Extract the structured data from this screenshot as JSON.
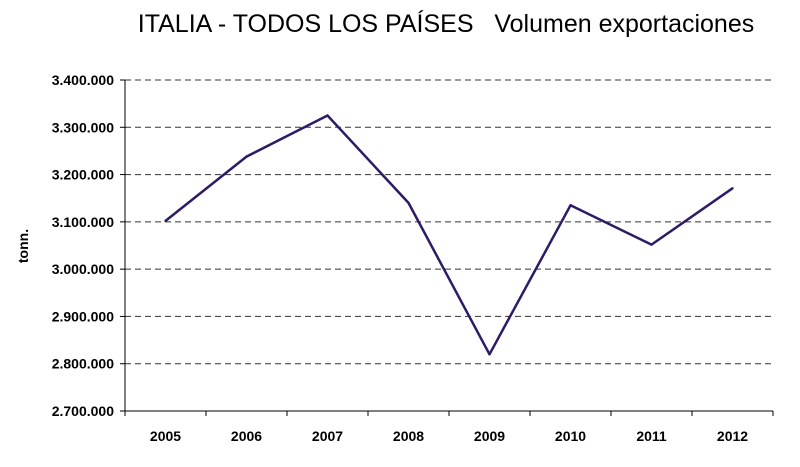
{
  "chart_data": {
    "type": "line",
    "title": "ITALIA - TODOS LOS PAÍSES   Volumen exportaciones",
    "xlabel": "",
    "ylabel": "tonn.",
    "categories": [
      "2005",
      "2006",
      "2007",
      "2008",
      "2009",
      "2010",
      "2011",
      "2012"
    ],
    "series": [
      {
        "values": [
          3102000,
          3238000,
          3325000,
          3140000,
          2820000,
          3135000,
          3052000,
          3171000
        ]
      }
    ],
    "ylim": [
      2700000,
      3400000
    ],
    "yticks": [
      2700000,
      2800000,
      2900000,
      3000000,
      3100000,
      3200000,
      3300000,
      3400000
    ],
    "ytick_labels": [
      "2.700.000",
      "2.800.000",
      "2.900.000",
      "3.000.000",
      "3.100.000",
      "3.200.000",
      "3.300.000",
      "3.400.000"
    ],
    "grid": true,
    "grid_style": "dashed",
    "line_color": "#2e1a66",
    "grid_color": "#333333",
    "axis_color": "#000000"
  }
}
